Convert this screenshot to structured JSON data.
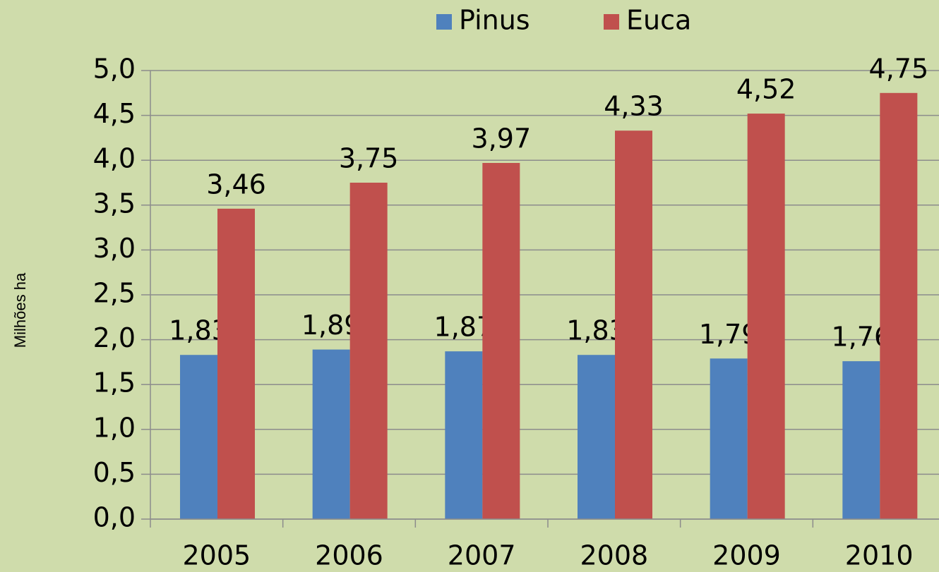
{
  "chart_data": {
    "type": "bar",
    "y_label": "Milhões ha",
    "categories": [
      "2005",
      "2006",
      "2007",
      "2008",
      "2009",
      "2010"
    ],
    "series": [
      {
        "name": "Pinus",
        "color": "#4f81bd",
        "values": [
          1.83,
          1.89,
          1.87,
          1.83,
          1.79,
          1.76
        ],
        "value_labels": [
          "1,83",
          "1,89",
          "1,87",
          "1,83",
          "1,79",
          "1,76"
        ]
      },
      {
        "name": "Euca",
        "color": "#c0504d",
        "values": [
          3.46,
          3.75,
          3.97,
          4.33,
          4.52,
          4.75
        ],
        "value_labels": [
          "3,46",
          "3,75",
          "3,97",
          "4,33",
          "4,52",
          "4,75"
        ]
      }
    ],
    "ylim": [
      0,
      5
    ],
    "yticks": [
      {
        "value": 0,
        "label": "0,0"
      },
      {
        "value": 0.5,
        "label": "0,5"
      },
      {
        "value": 1,
        "label": "1,0"
      },
      {
        "value": 1.5,
        "label": "1,5"
      },
      {
        "value": 2,
        "label": "2,0"
      },
      {
        "value": 2.5,
        "label": "2,5"
      },
      {
        "value": 3,
        "label": "3,0"
      },
      {
        "value": 3.5,
        "label": "3,5"
      },
      {
        "value": 4,
        "label": "4,0"
      },
      {
        "value": 4.5,
        "label": "4,5"
      },
      {
        "value": 5,
        "label": "5,0"
      }
    ],
    "grid": true,
    "legend": "top"
  }
}
